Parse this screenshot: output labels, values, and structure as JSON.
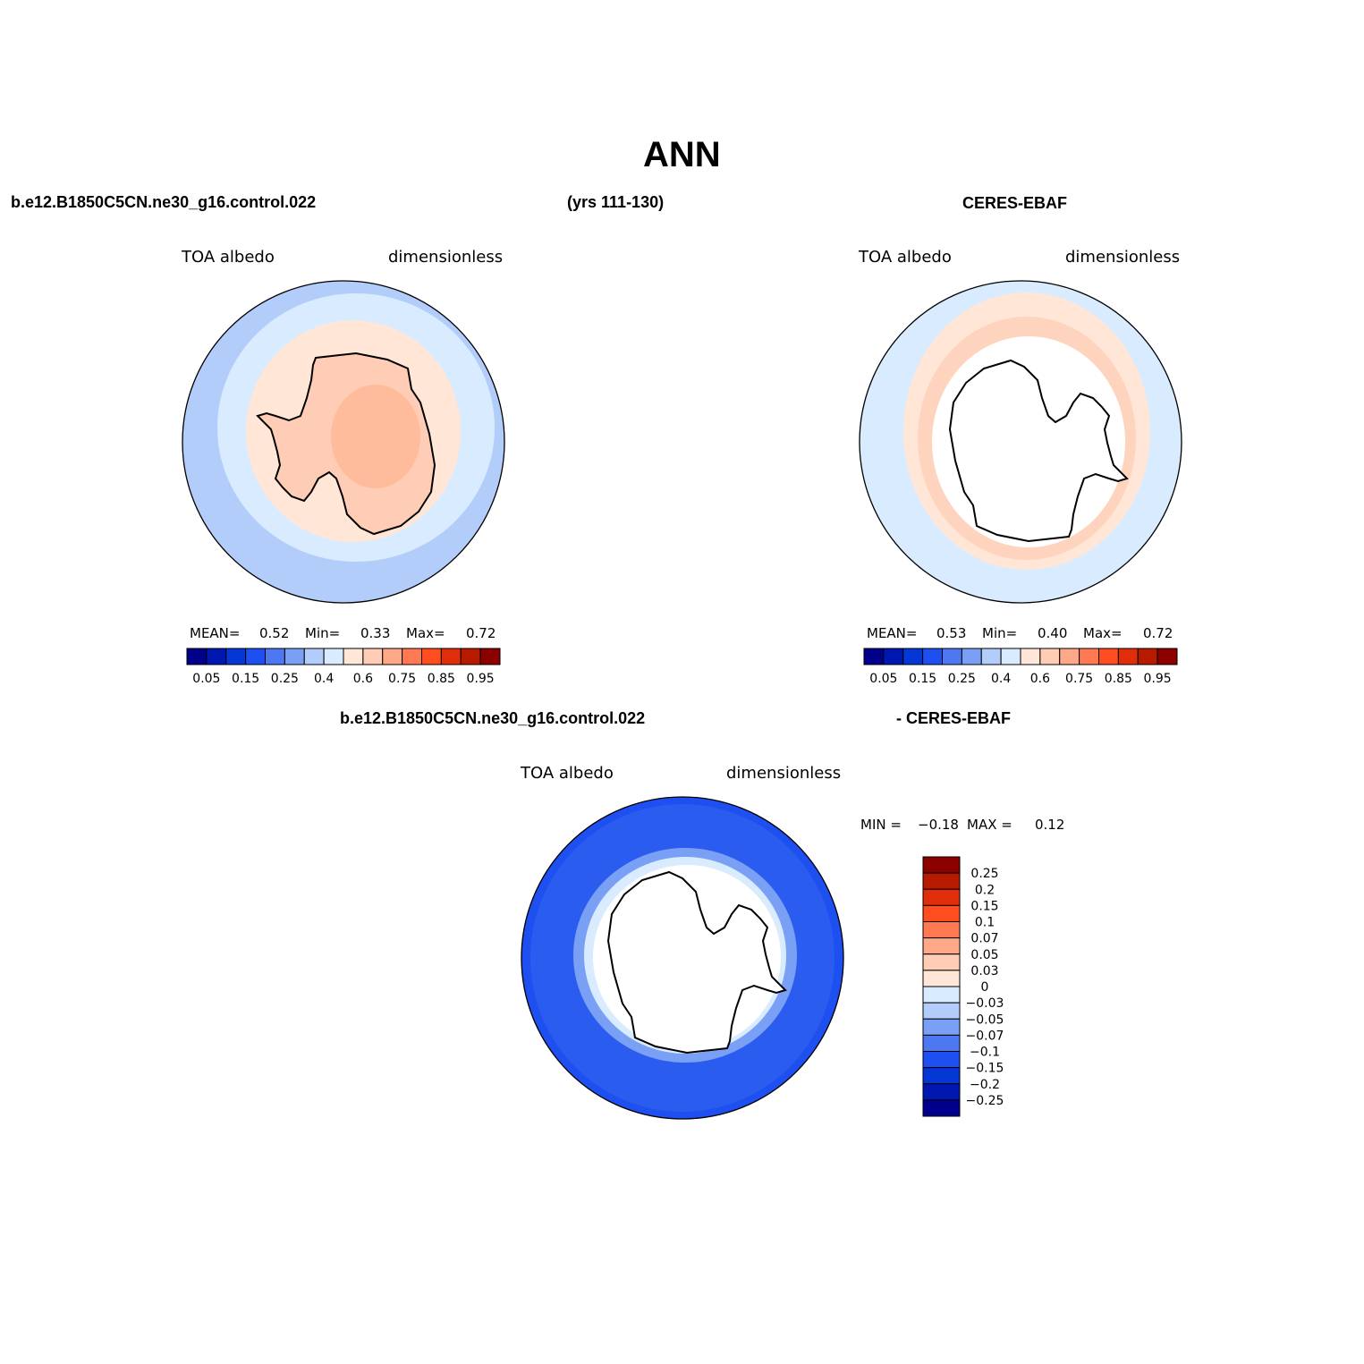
{
  "title": "ANN",
  "case_name": "b.e12.B1850C5CN.ne30_g16.control.022",
  "years": "(yrs 111-130)",
  "obs_name": "CERES-EBAF",
  "diff_case_name": "b.e12.B1850C5CN.ne30_g16.control.022",
  "diff_obs_name": "- CERES-EBAF",
  "chart_data": [
    {
      "type": "map",
      "projection": "south-polar-stereographic",
      "variable": "TOA albedo",
      "units": "dimensionless",
      "stats": {
        "mean_label": "MEAN=",
        "mean": "0.52",
        "min_label": "Min=",
        "min": "0.33",
        "max_label": "Max=",
        "max": "0.72"
      },
      "colorbar": {
        "orientation": "horizontal",
        "levels": [
          0.05,
          0.1,
          0.15,
          0.2,
          0.25,
          0.3,
          0.35,
          0.4,
          0.5,
          0.6,
          0.65,
          0.7,
          0.75,
          0.8,
          0.85,
          0.9,
          0.95
        ],
        "tick_labels": [
          "0.05",
          "0.15",
          "0.25",
          "0.4",
          "0.6",
          "0.75",
          "0.85",
          "0.95"
        ]
      }
    },
    {
      "type": "map",
      "projection": "south-polar-stereographic",
      "variable": "TOA albedo",
      "units": "dimensionless",
      "stats": {
        "mean_label": "MEAN=",
        "mean": "0.53",
        "min_label": "Min=",
        "min": "0.40",
        "max_label": "Max=",
        "max": "0.72"
      },
      "colorbar": {
        "orientation": "horizontal",
        "levels": [
          0.05,
          0.1,
          0.15,
          0.2,
          0.25,
          0.3,
          0.35,
          0.4,
          0.5,
          0.6,
          0.65,
          0.7,
          0.75,
          0.8,
          0.85,
          0.9,
          0.95
        ],
        "tick_labels": [
          "0.05",
          "0.15",
          "0.25",
          "0.4",
          "0.6",
          "0.75",
          "0.85",
          "0.95"
        ]
      }
    },
    {
      "type": "map",
      "projection": "south-polar-stereographic",
      "variable": "TOA albedo",
      "units": "dimensionless",
      "stats": {
        "min_label": "MIN =",
        "min": "−0.18",
        "max_label": "MAX =",
        "max": "0.12"
      },
      "colorbar": {
        "orientation": "vertical",
        "levels": [
          0.25,
          0.2,
          0.15,
          0.1,
          0.07,
          0.05,
          0.03,
          0,
          -0.03,
          -0.05,
          -0.07,
          -0.1,
          -0.15,
          -0.2,
          -0.25
        ],
        "tick_labels": [
          "0.25",
          "0.2",
          "0.15",
          "0.1",
          "0.07",
          "0.05",
          "0.03",
          "0",
          "−0.03",
          "−0.05",
          "−0.07",
          "−0.1",
          "−0.15",
          "−0.2",
          "−0.25"
        ]
      }
    }
  ],
  "palette": {
    "horizontal": [
      "#00008b",
      "#0017b2",
      "#0536d6",
      "#1e4ff0",
      "#4d78f2",
      "#7aa0f5",
      "#b3cdfa",
      "#d9ebff",
      "#ffe6d6",
      "#ffccb5",
      "#ffa887",
      "#ff7a52",
      "#ff4d1f",
      "#e02e0a",
      "#b81a00",
      "#8c0000"
    ],
    "vertical": [
      "#8c0000",
      "#b81a00",
      "#e02e0a",
      "#ff4d1f",
      "#ff7a52",
      "#ffa887",
      "#ffccb5",
      "#ffe6d6",
      "#d9ebff",
      "#b3cdfa",
      "#7aa0f5",
      "#4d78f2",
      "#1e4ff0",
      "#0536d6",
      "#0017b2",
      "#00008b"
    ]
  }
}
